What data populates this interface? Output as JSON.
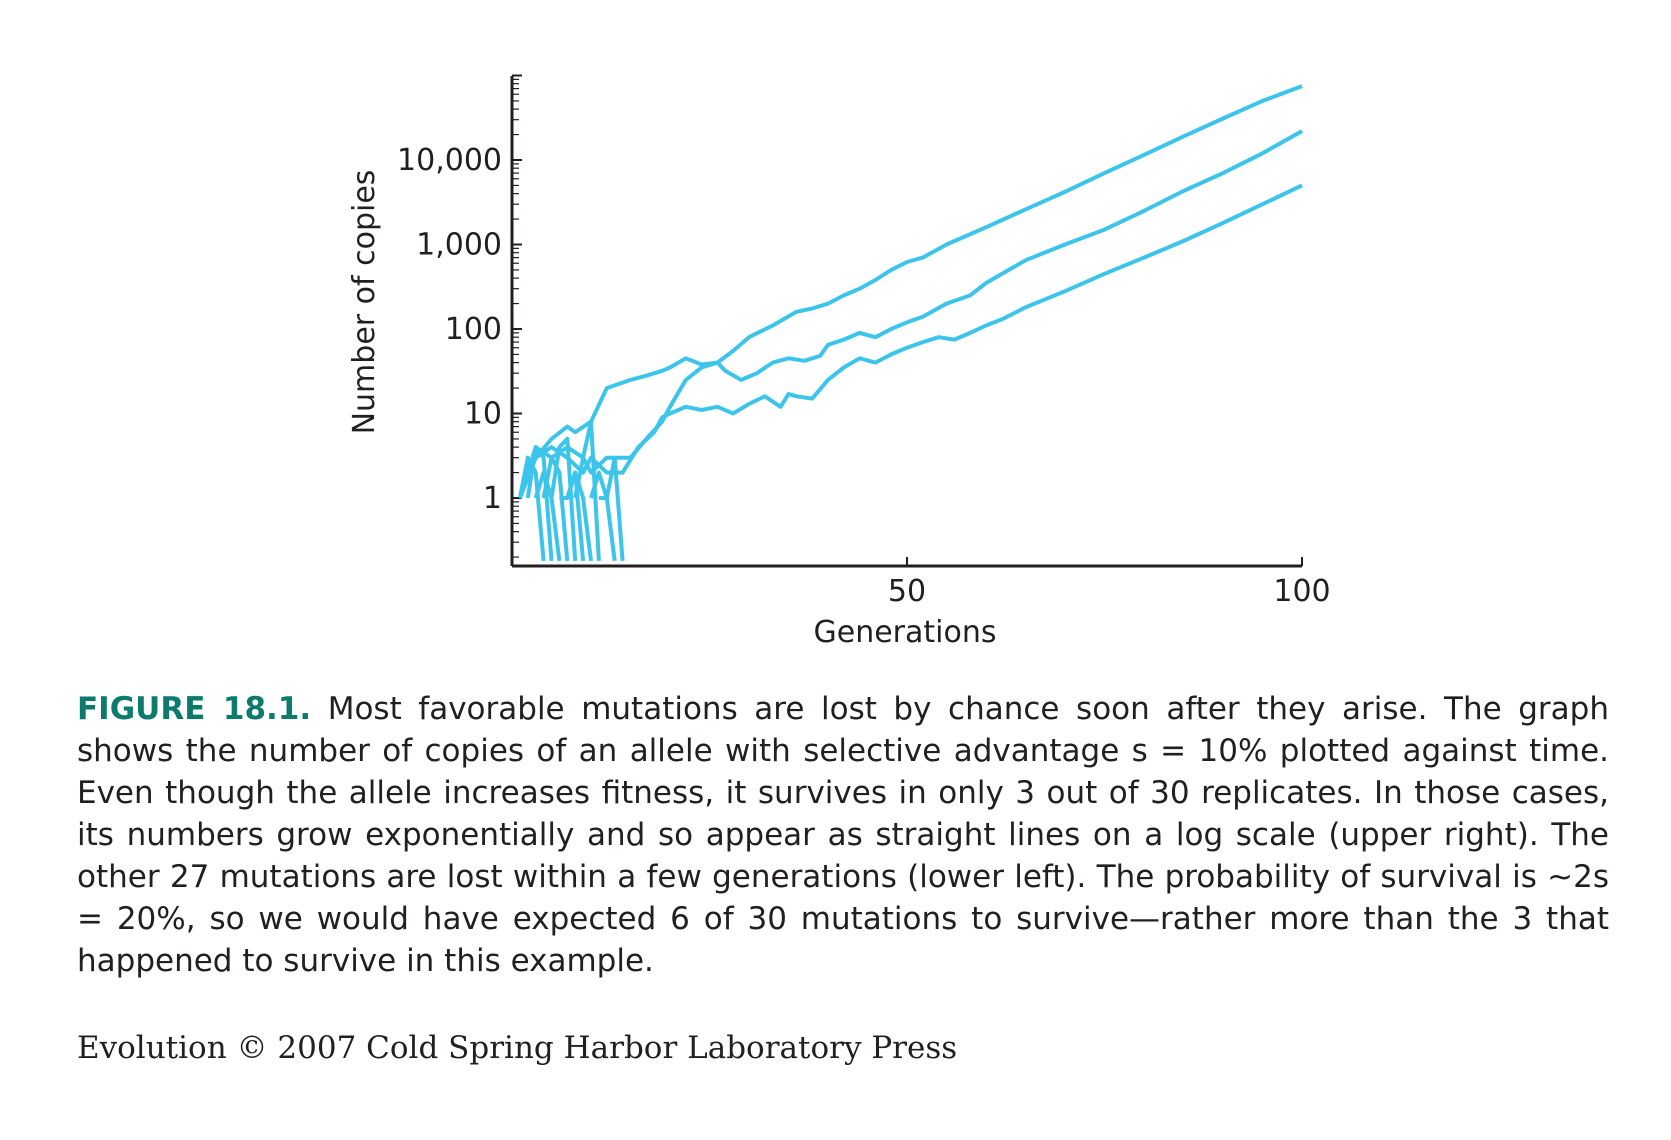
{
  "chart_data": {
    "type": "line",
    "xlabel": "Generations",
    "ylabel": "Number of copies",
    "xlim": [
      0,
      100
    ],
    "ylim": [
      0.2,
      150000
    ],
    "yscale": "log",
    "xticks": [
      {
        "value": 50,
        "label": "50"
      },
      {
        "value": 100,
        "label": "100"
      }
    ],
    "yticks": [
      {
        "value": 1,
        "label": "1"
      },
      {
        "value": 10,
        "label": "10"
      },
      {
        "value": 100,
        "label": "100"
      },
      {
        "value": 1000,
        "label": "1,000"
      },
      {
        "value": 10000,
        "label": "10,000"
      }
    ],
    "line_color": "#3cc4ea",
    "grid": false,
    "legend": "none",
    "series": [
      {
        "x": [
          1,
          3,
          5,
          7,
          8,
          10,
          12,
          15,
          17,
          19,
          20,
          22,
          24,
          26,
          28,
          30,
          33,
          36,
          38,
          40,
          42,
          44,
          46,
          48,
          50,
          52,
          55,
          60,
          65,
          70,
          75,
          80,
          85,
          90,
          95,
          100
        ],
        "y": [
          1,
          3,
          5,
          7,
          6,
          8,
          20,
          25,
          28,
          32,
          35,
          45,
          38,
          40,
          55,
          80,
          110,
          160,
          175,
          200,
          250,
          300,
          380,
          500,
          620,
          700,
          1000,
          1600,
          2600,
          4200,
          7000,
          11500,
          19000,
          31000,
          50000,
          75000
        ]
      },
      {
        "x": [
          1,
          3,
          5,
          7,
          9,
          10,
          12,
          14,
          15,
          17,
          19,
          20,
          22,
          24,
          26,
          27,
          29,
          31,
          33,
          35,
          37,
          39,
          40,
          42,
          44,
          46,
          48,
          50,
          52,
          55,
          58,
          60,
          65,
          70,
          75,
          80,
          85,
          90,
          95,
          100
        ],
        "y": [
          1,
          4,
          3,
          4,
          3,
          2,
          3,
          3,
          3,
          5,
          8,
          12,
          25,
          35,
          40,
          32,
          25,
          30,
          40,
          45,
          42,
          48,
          65,
          75,
          90,
          80,
          100,
          120,
          140,
          200,
          250,
          350,
          650,
          1000,
          1500,
          2500,
          4300,
          7000,
          12000,
          22000
        ]
      },
      {
        "x": [
          1,
          3,
          5,
          7,
          9,
          10,
          12,
          14,
          16,
          18,
          19,
          20,
          22,
          24,
          26,
          28,
          30,
          32,
          34,
          35,
          36,
          38,
          40,
          42,
          44,
          46,
          48,
          50,
          52,
          54,
          56,
          58,
          60,
          62,
          65,
          70,
          75,
          80,
          85,
          90,
          95,
          100
        ],
        "y": [
          1,
          3,
          4,
          3,
          2,
          3,
          2,
          2,
          4,
          6,
          9,
          10,
          12,
          11,
          12,
          10,
          13,
          16,
          12,
          17,
          16,
          15,
          25,
          35,
          45,
          40,
          50,
          60,
          70,
          80,
          75,
          90,
          110,
          130,
          180,
          280,
          450,
          700,
          1100,
          1800,
          3000,
          5000
        ]
      },
      {
        "x": [
          1,
          2,
          3,
          4
        ],
        "y": [
          1,
          3,
          2,
          0.18
        ]
      },
      {
        "x": [
          2,
          3,
          4,
          5
        ],
        "y": [
          1,
          4,
          3,
          0.18
        ]
      },
      {
        "x": [
          3,
          4,
          5,
          6
        ],
        "y": [
          1,
          2,
          1,
          0.18
        ]
      },
      {
        "x": [
          4,
          5,
          6,
          7
        ],
        "y": [
          1,
          3,
          2,
          0.18
        ]
      },
      {
        "x": [
          5,
          6,
          7,
          8
        ],
        "y": [
          1,
          4,
          5,
          0.18
        ]
      },
      {
        "x": [
          7,
          8,
          9,
          10
        ],
        "y": [
          1,
          2,
          1,
          0.18
        ]
      },
      {
        "x": [
          8,
          9,
          10,
          11
        ],
        "y": [
          1,
          3,
          8,
          0.18
        ]
      },
      {
        "x": [
          10,
          11,
          12,
          13
        ],
        "y": [
          1,
          2,
          1,
          0.18
        ]
      },
      {
        "x": [
          11,
          12,
          13,
          14
        ],
        "y": [
          1,
          1,
          3,
          0.18
        ]
      },
      {
        "x": [
          6,
          7,
          8,
          9
        ],
        "y": [
          1,
          1,
          2,
          0.18
        ]
      }
    ]
  },
  "caption": {
    "lead": "FIGURE 18.1.",
    "text": "Most favorable mutations are lost by chance soon after they arise. The graph shows the number of copies of an allele with selective advantage s = 10% plotted against time. Even though the allele increases fitness, it survives in only 3 out of 30 replicates. In those cases, its numbers grow exponentially and so appear as straight lines on a log scale (upper right). The other 27 mutations are lost within a few generations (lower left). The probability of survival is ~2s = 20%, so we would have expected 6 of 30 mutations to survive—rather more than the 3 that happened to survive in this example."
  },
  "credit": "Evolution © 2007 Cold Spring Harbor Laboratory Press"
}
